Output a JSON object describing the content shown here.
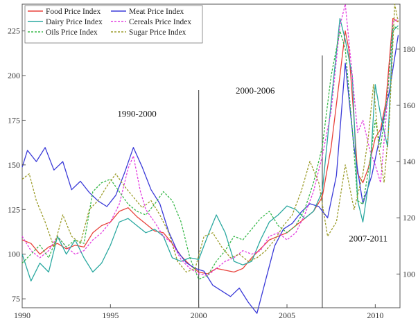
{
  "chart_data": {
    "type": "line",
    "title": "",
    "xlabel": "",
    "ylabel": "",
    "xlim": [
      1990,
      2011.4
    ],
    "ylim_left": [
      70,
      240
    ],
    "ylim_right": [
      88,
      196
    ],
    "x_ticks": [
      1990,
      1995,
      2000,
      2005,
      2010
    ],
    "x_tick_labels": [
      "1990",
      "1995",
      "2000",
      "2005",
      "2010"
    ],
    "y_left_ticks": [
      75,
      100,
      125,
      150,
      175,
      200,
      225
    ],
    "y_left_tick_labels": [
      "75",
      "100",
      "125",
      "150",
      "175",
      "200",
      "225"
    ],
    "y_right_ticks": [
      100,
      120,
      140,
      160,
      180
    ],
    "y_right_tick_labels": [
      "100",
      "120",
      "140",
      "160",
      "180"
    ],
    "grid": false,
    "legend_position": "top-left",
    "vertical_markers": [
      2000.0,
      2007.0
    ],
    "annotations": [
      {
        "text": "1990-2000",
        "x": 1996.5,
        "y": 177
      },
      {
        "text": "2000-2006",
        "x": 2003.2,
        "y": 190
      },
      {
        "text": "2007-2011",
        "x": 2009.6,
        "y": 107
      }
    ],
    "series": [
      {
        "name": "Food Price Index",
        "color": "#e8413a",
        "dash": "solid",
        "axis": "left",
        "x": [
          1990,
          1990.5,
          1991,
          1991.5,
          1992,
          1992.5,
          1993,
          1993.5,
          1994,
          1994.5,
          1995,
          1995.5,
          1996,
          1996.5,
          1997,
          1997.5,
          1998,
          1998.5,
          1999,
          1999.5,
          2000,
          2000.5,
          2001,
          2001.5,
          2002,
          2002.5,
          2003,
          2003.5,
          2004,
          2004.5,
          2005,
          2005.5,
          2006,
          2006.5,
          2007,
          2007.5,
          2008,
          2008.3,
          2008.5,
          2008.8,
          2009,
          2009.3,
          2009.6,
          2010,
          2010.3,
          2010.6,
          2011,
          2011.3
        ],
        "y": [
          108,
          106,
          100,
          104,
          106,
          103,
          105,
          104,
          112,
          116,
          118,
          124,
          126,
          121,
          117,
          113,
          112,
          106,
          99,
          94,
          90,
          89,
          92,
          91,
          90,
          92,
          98,
          103,
          108,
          110,
          112,
          116,
          120,
          124,
          132,
          160,
          200,
          225,
          215,
          175,
          145,
          140,
          148,
          165,
          170,
          185,
          232,
          230
        ]
      },
      {
        "name": "Meat Price Index",
        "color": "#3a3ad8",
        "dash": "solid",
        "axis": "right",
        "x": [
          1990,
          1990.3,
          1990.8,
          1991.3,
          1991.8,
          1992.3,
          1992.8,
          1993.3,
          1993.8,
          1994.3,
          1994.8,
          1995.3,
          1995.8,
          1996.3,
          1996.8,
          1997.3,
          1997.8,
          1998.3,
          1998.8,
          1999.3,
          1999.8,
          2000.3,
          2000.8,
          2001.3,
          2001.8,
          2002.3,
          2002.8,
          2003.3,
          2003.8,
          2004.3,
          2004.8,
          2005.3,
          2005.8,
          2006.3,
          2006.8,
          2007.3,
          2007.8,
          2008.3,
          2008.8,
          2009.3,
          2009.8,
          2010.3,
          2010.8,
          2011.3
        ],
        "y": [
          138,
          144,
          140,
          145,
          137,
          140,
          130,
          133,
          129,
          126,
          124,
          128,
          136,
          145,
          138,
          130,
          125,
          115,
          108,
          104,
          102,
          101,
          96,
          94,
          92,
          95,
          90,
          86,
          98,
          110,
          116,
          118,
          122,
          125,
          124,
          120,
          135,
          175,
          145,
          125,
          135,
          150,
          165,
          185
        ]
      },
      {
        "name": "Dairy Price Index",
        "color": "#2aa8a0",
        "dash": "solid",
        "axis": "left",
        "x": [
          1990,
          1990.5,
          1991,
          1991.5,
          1992,
          1992.5,
          1993,
          1993.5,
          1994,
          1994.5,
          1995,
          1995.5,
          1996,
          1996.5,
          1997,
          1997.5,
          1998,
          1998.5,
          1999,
          1999.5,
          2000,
          2000.5,
          2001,
          2001.5,
          2002,
          2002.5,
          2003,
          2003.5,
          2004,
          2004.5,
          2005,
          2005.5,
          2006,
          2006.5,
          2007,
          2007.5,
          2008,
          2008.3,
          2008.7,
          2009,
          2009.3,
          2009.7,
          2010,
          2010.3,
          2010.7,
          2011,
          2011.3
        ],
        "y": [
          100,
          85,
          95,
          90,
          110,
          100,
          108,
          98,
          90,
          95,
          105,
          118,
          120,
          116,
          112,
          114,
          110,
          98,
          96,
          98,
          97,
          110,
          122,
          112,
          96,
          94,
          96,
          108,
          118,
          122,
          127,
          125,
          120,
          124,
          135,
          185,
          232,
          220,
          200,
          130,
          118,
          145,
          195,
          178,
          160,
          225,
          228
        ]
      },
      {
        "name": "Cereals Price Index",
        "color": "#e43fe0",
        "dash": "dashed",
        "axis": "left",
        "x": [
          1990,
          1990.5,
          1991,
          1991.5,
          1992,
          1992.5,
          1993,
          1993.5,
          1994,
          1994.5,
          1995,
          1995.5,
          1996,
          1996.3,
          1996.7,
          1997,
          1997.5,
          1998,
          1998.5,
          1999,
          1999.5,
          2000,
          2000.5,
          2001,
          2001.5,
          2002,
          2002.5,
          2003,
          2003.5,
          2004,
          2004.5,
          2005,
          2005.5,
          2006,
          2006.5,
          2007,
          2007.5,
          2008,
          2008.3,
          2008.7,
          2009,
          2009.3,
          2009.7,
          2010,
          2010.3,
          2010.6,
          2011,
          2011.3
        ],
        "y": [
          110,
          102,
          98,
          102,
          110,
          104,
          100,
          102,
          108,
          112,
          118,
          128,
          148,
          155,
          135,
          125,
          118,
          110,
          106,
          97,
          92,
          89,
          88,
          92,
          96,
          98,
          102,
          100,
          102,
          110,
          112,
          108,
          112,
          122,
          135,
          155,
          180,
          228,
          240,
          200,
          168,
          175,
          158,
          150,
          140,
          175,
          230,
          232
        ]
      },
      {
        "name": "Oils Price Index",
        "color": "#38b84a",
        "dash": "dashed",
        "axis": "left",
        "x": [
          1990,
          1990.5,
          1991,
          1991.5,
          1992,
          1992.5,
          1993,
          1993.5,
          1994,
          1994.5,
          1995,
          1995.5,
          1996,
          1996.5,
          1997,
          1997.5,
          1998,
          1998.5,
          1999,
          1999.5,
          2000,
          2000.5,
          2001,
          2001.5,
          2002,
          2002.5,
          2003,
          2003.5,
          2004,
          2004.5,
          2005,
          2005.5,
          2006,
          2006.5,
          2007,
          2007.5,
          2008,
          2008.3,
          2008.7,
          2009,
          2009.3,
          2009.7,
          2010,
          2010.3,
          2010.7,
          2011,
          2011.3
        ],
        "y": [
          95,
          100,
          105,
          98,
          110,
          104,
          108,
          106,
          135,
          140,
          142,
          135,
          128,
          124,
          122,
          128,
          135,
          130,
          118,
          98,
          86,
          88,
          96,
          102,
          110,
          108,
          114,
          120,
          124,
          116,
          112,
          116,
          125,
          140,
          160,
          200,
          225,
          215,
          170,
          130,
          128,
          152,
          175,
          160,
          190,
          228,
          226
        ]
      },
      {
        "name": "Sugar Price Index",
        "color": "#9c9c2a",
        "dash": "dashed",
        "axis": "left",
        "x": [
          1990,
          1990.4,
          1990.8,
          1991.3,
          1991.8,
          1992.3,
          1992.8,
          1993.3,
          1993.8,
          1994.3,
          1994.8,
          1995.3,
          1995.8,
          1996.3,
          1996.8,
          1997.3,
          1997.8,
          1998.3,
          1998.8,
          1999.3,
          1999.8,
          2000.3,
          2000.8,
          2001.3,
          2001.8,
          2002.3,
          2002.8,
          2003.3,
          2003.8,
          2004.3,
          2004.8,
          2005.3,
          2005.8,
          2006.3,
          2006.8,
          2007.3,
          2007.8,
          2008.3,
          2008.8,
          2009.3,
          2009.6,
          2009.9,
          2010.2,
          2010.5,
          2010.8,
          2011.1,
          2011.3
        ],
        "y": [
          142,
          145,
          130,
          118,
          104,
          122,
          110,
          106,
          125,
          130,
          138,
          145,
          138,
          132,
          126,
          130,
          122,
          112,
          96,
          90,
          92,
          110,
          112,
          104,
          98,
          100,
          96,
          98,
          102,
          108,
          116,
          122,
          135,
          152,
          140,
          110,
          118,
          150,
          125,
          145,
          165,
          195,
          160,
          140,
          175,
          240,
          230
        ]
      }
    ]
  }
}
